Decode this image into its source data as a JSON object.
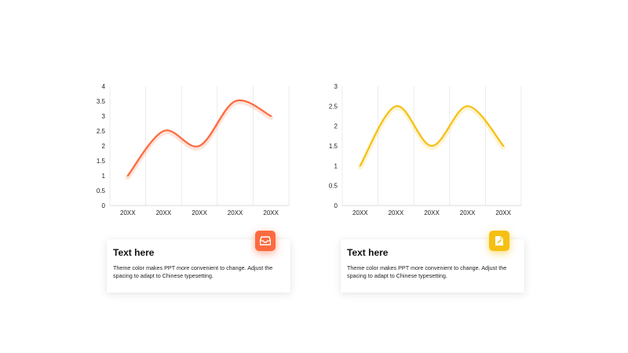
{
  "colors": {
    "orange": "#fc6b3f",
    "yellow": "#f6c012",
    "grid": "#e6e6e6"
  },
  "chart_data": [
    {
      "type": "line",
      "smooth": true,
      "categories": [
        "20XX",
        "20XX",
        "20XX",
        "20XX",
        "20XX"
      ],
      "series": [
        {
          "values": [
            1,
            2.5,
            2,
            3.5,
            3
          ]
        }
      ],
      "ylim": [
        0,
        4
      ],
      "yticks": [
        "0",
        "0.5",
        "1",
        "1.5",
        "2",
        "2.5",
        "3",
        "3.5",
        "4"
      ],
      "grid": "vertical",
      "color": "#fc6b3f"
    },
    {
      "type": "line",
      "smooth": true,
      "categories": [
        "20XX",
        "20XX",
        "20XX",
        "20XX",
        "20XX"
      ],
      "series": [
        {
          "values": [
            1,
            2.5,
            1.5,
            2.5,
            1.5
          ]
        }
      ],
      "ylim": [
        0,
        3
      ],
      "yticks": [
        "0",
        "0.5",
        "1",
        "1.5",
        "2",
        "2.5",
        "3"
      ],
      "grid": "vertical",
      "color": "#f6c012"
    }
  ],
  "cards": [
    {
      "title": "Text here",
      "body": "Theme  color makes PPT more convenient to change. Adjust the spacing to adapt to Chinese typesetting.",
      "icon": "inbox-icon",
      "color": "#fc6b3f"
    },
    {
      "title": "Text here",
      "body": "Theme  color makes PPT more convenient to change. Adjust the spacing to adapt to Chinese typesetting.",
      "icon": "document-edit-icon",
      "color": "#f6c012"
    }
  ]
}
